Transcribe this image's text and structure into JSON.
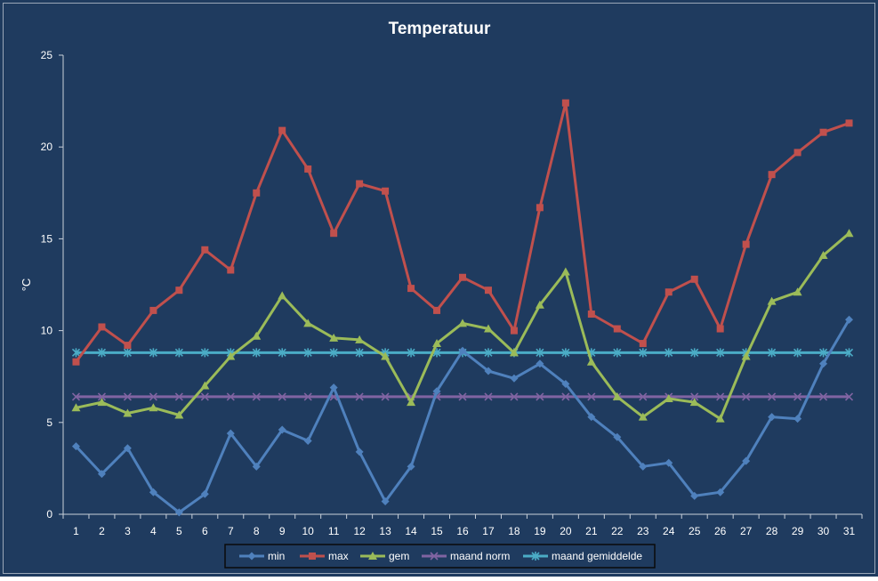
{
  "chart_data": {
    "type": "line",
    "title": "Temperatuur",
    "xlabel": "",
    "ylabel": "°C",
    "ylim": [
      0,
      25
    ],
    "yticks": [
      0,
      5,
      10,
      15,
      20,
      25
    ],
    "grid": false,
    "legend_position": "bottom",
    "background_color": "#1f3b5f",
    "text_color": "#ffffff",
    "categories": [
      "1",
      "2",
      "3",
      "4",
      "5",
      "6",
      "7",
      "8",
      "9",
      "10",
      "11",
      "12",
      "13",
      "14",
      "15",
      "16",
      "17",
      "18",
      "19",
      "20",
      "21",
      "22",
      "23",
      "24",
      "25",
      "26",
      "27",
      "28",
      "29",
      "30",
      "31"
    ],
    "series": [
      {
        "name": "min",
        "color": "#4f81bd",
        "marker": "diamond",
        "values": [
          3.7,
          2.2,
          3.6,
          1.2,
          0.1,
          1.1,
          4.4,
          2.6,
          4.6,
          4.0,
          6.9,
          3.4,
          0.7,
          2.6,
          6.7,
          8.9,
          7.8,
          7.4,
          8.2,
          7.1,
          5.3,
          4.2,
          2.6,
          2.8,
          1.0,
          1.2,
          2.9,
          5.3,
          5.2,
          8.2,
          10.6
        ]
      },
      {
        "name": "max",
        "color": "#c0504d",
        "marker": "square",
        "values": [
          8.3,
          10.2,
          9.2,
          11.1,
          12.2,
          14.4,
          13.3,
          17.5,
          20.9,
          18.8,
          15.3,
          18.0,
          17.6,
          12.3,
          11.1,
          12.9,
          12.2,
          10.0,
          16.7,
          22.4,
          10.9,
          10.1,
          9.3,
          12.1,
          12.8,
          10.1,
          14.7,
          18.5,
          19.7,
          20.8,
          21.3
        ]
      },
      {
        "name": "gem",
        "color": "#9bbb59",
        "marker": "triangle",
        "values": [
          5.8,
          6.1,
          5.5,
          5.8,
          5.4,
          7.0,
          8.6,
          9.7,
          11.9,
          10.4,
          9.6,
          9.5,
          8.6,
          6.1,
          9.3,
          10.4,
          10.1,
          8.8,
          11.4,
          13.2,
          8.3,
          6.4,
          5.3,
          6.3,
          6.1,
          5.2,
          8.6,
          11.6,
          12.1,
          14.1,
          15.3
        ]
      },
      {
        "name": "maand norm",
        "color": "#8064a2",
        "marker": "x",
        "values": [
          6.4,
          6.4,
          6.4,
          6.4,
          6.4,
          6.4,
          6.4,
          6.4,
          6.4,
          6.4,
          6.4,
          6.4,
          6.4,
          6.4,
          6.4,
          6.4,
          6.4,
          6.4,
          6.4,
          6.4,
          6.4,
          6.4,
          6.4,
          6.4,
          6.4,
          6.4,
          6.4,
          6.4,
          6.4,
          6.4,
          6.4
        ]
      },
      {
        "name": "maand gemiddelde",
        "color": "#4bacc6",
        "marker": "star",
        "values": [
          8.8,
          8.8,
          8.8,
          8.8,
          8.8,
          8.8,
          8.8,
          8.8,
          8.8,
          8.8,
          8.8,
          8.8,
          8.8,
          8.8,
          8.8,
          8.8,
          8.8,
          8.8,
          8.8,
          8.8,
          8.8,
          8.8,
          8.8,
          8.8,
          8.8,
          8.8,
          8.8,
          8.8,
          8.8,
          8.8,
          8.8
        ]
      }
    ]
  }
}
